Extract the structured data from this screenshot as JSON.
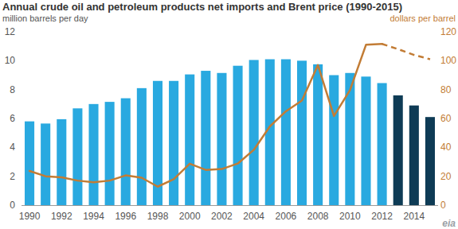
{
  "chart_data": {
    "type": "bar",
    "title": "Annual crude oil and petroleum products net imports and Brent price (1990-2015)",
    "ylabel": "million barrels per day",
    "y2label": "dollars per barrel",
    "logo": "eia",
    "categories": [
      "1990",
      null,
      "1992",
      null,
      "1994",
      null,
      "1996",
      null,
      "1998",
      null,
      "2000",
      null,
      "2002",
      null,
      "2004",
      null,
      "2006",
      null,
      "2008",
      null,
      "2010",
      null,
      "2012",
      null,
      "2014",
      null
    ],
    "series": [
      {
        "type": "bar",
        "values": [
          5.8,
          5.65,
          5.95,
          6.7,
          7.0,
          7.15,
          7.4,
          8.1,
          8.6,
          8.6,
          9.05,
          9.3,
          9.15,
          9.65,
          10.05,
          10.1,
          10.1,
          10.0,
          9.75,
          9.0,
          9.15,
          8.9,
          8.45,
          7.6,
          6.9,
          6.1
        ],
        "colors": [
          "#29a9e0",
          "#29a9e0",
          "#29a9e0",
          "#29a9e0",
          "#29a9e0",
          "#29a9e0",
          "#29a9e0",
          "#29a9e0",
          "#29a9e0",
          "#29a9e0",
          "#29a9e0",
          "#29a9e0",
          "#29a9e0",
          "#29a9e0",
          "#29a9e0",
          "#29a9e0",
          "#29a9e0",
          "#29a9e0",
          "#29a9e0",
          "#29a9e0",
          "#29a9e0",
          "#29a9e0",
          "#29a9e0",
          "#0e3b55",
          "#0e3b55",
          "#0e3b55"
        ]
      },
      {
        "type": "line",
        "axis": "y2",
        "color": "#c27c35",
        "line_style": "solid",
        "values": [
          23.7,
          20.0,
          19.3,
          17.0,
          15.8,
          17.0,
          20.6,
          19.0,
          12.8,
          17.9,
          28.7,
          24.4,
          25.0,
          28.8,
          38.3,
          54.5,
          65.0,
          72.4,
          97.0,
          61.7,
          79.6,
          111.0,
          111.6,
          null,
          null,
          null
        ]
      },
      {
        "type": "line",
        "axis": "y2",
        "color": "#c27c35",
        "line_style": "dashed",
        "values": [
          null,
          null,
          null,
          null,
          null,
          null,
          null,
          null,
          null,
          null,
          null,
          null,
          null,
          null,
          null,
          null,
          null,
          null,
          null,
          null,
          null,
          null,
          111.6,
          108.0,
          104.0,
          101.0
        ]
      }
    ],
    "ylim": [
      0,
      12
    ],
    "yticks": [
      0,
      2,
      4,
      6,
      8,
      10,
      12
    ],
    "y2lim": [
      0,
      120
    ],
    "y2ticks": [
      0,
      20,
      40,
      60,
      80,
      100,
      120
    ],
    "grid": false
  }
}
